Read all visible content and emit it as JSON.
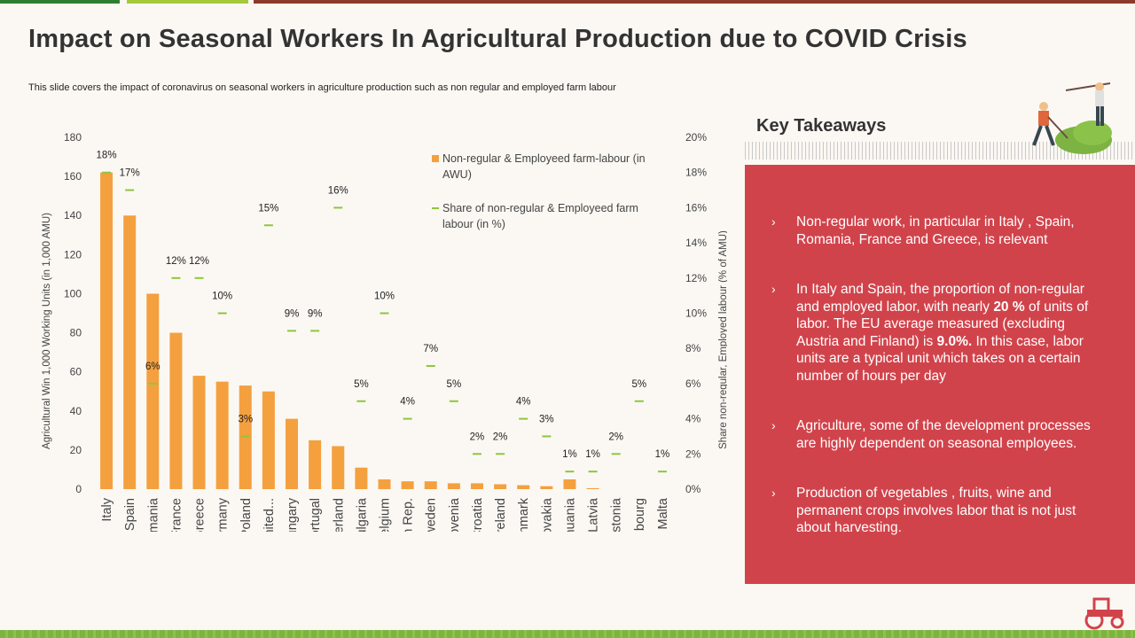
{
  "slide": {
    "title": "Impact on Seasonal Workers In Agricultural Production due to COVID Crisis",
    "subtitle": "This slide covers the  impact of coronavirus on seasonal workers in agriculture production such as non regular and employed farm labour"
  },
  "takeaways": {
    "title": "Key Takeaways",
    "items": [
      {
        "arrow": "›",
        "html": "Non-regular work, in particular in Italy , Spain, Romania, France and Greece, is relevant"
      },
      {
        "arrow": "›",
        "html": "In Italy and Spain, the proportion of non-regular and employed labor, with nearly <b>20 %</b> of units of labor. The EU average measured (excluding Austria and Finland) is <b>9.0%.</b> In this case, labor units are a typical unit which takes on a certain number of hours per day"
      },
      {
        "arrow": "›",
        "html": "Agriculture, some of the development processes are highly dependent on seasonal employees."
      },
      {
        "arrow": "›",
        "html": "Production of vegetables , fruits, wine and permanent crops involves labor that is not just about harvesting."
      }
    ]
  },
  "chart_data": {
    "type": "bar",
    "categories": [
      "Italy",
      "Spain",
      "Romania",
      "France",
      "Greece",
      "Germany",
      "Poland",
      "United...",
      "Hungary",
      "Portugal",
      "Netherland",
      "Bulgaria",
      "Belgium",
      "Czech Rep.",
      "Sweden",
      "Slovenia",
      "Croatia",
      "Ireland",
      "Denmark",
      "Slovakia",
      "Lithuania",
      "Latvia",
      "Estonia",
      "Luxembourg",
      "Malta"
    ],
    "series": [
      {
        "name": "Non-regular & Employeed farm-labour (in AWU)",
        "axis": "left",
        "kind": "bar",
        "values": [
          162,
          140,
          100,
          80,
          58,
          55,
          53,
          50,
          36,
          25,
          22,
          11,
          5,
          4,
          4,
          3,
          3,
          2.5,
          2,
          1.5,
          5,
          0.5,
          0,
          0,
          0
        ]
      },
      {
        "name": "Share of non-regular & Employeed farm labour (in %)",
        "axis": "right",
        "kind": "marker",
        "values": [
          18,
          17,
          6,
          12,
          12,
          10,
          3,
          15,
          9,
          9,
          16,
          5,
          10,
          4,
          7,
          5,
          2,
          2,
          4,
          3,
          1,
          1,
          2,
          5,
          1
        ],
        "labels": [
          "18%",
          "17%",
          "6%",
          "12%",
          "12%",
          "10%",
          "3%",
          "15%",
          "9%",
          "9%",
          "16%",
          "5%",
          "10%",
          "4%",
          "7%",
          "5%",
          "2%",
          "2%",
          "4%",
          "3%",
          "1%",
          "1%",
          "2%",
          "5%",
          "1%"
        ]
      }
    ],
    "ylabel": "Agricultural Win 1,000 Working Units (in 1,000 AMU)",
    "y2label": "Share non-regular, Employed labour (% of AMU)",
    "ylim": [
      0,
      180
    ],
    "yticks": [
      "0",
      "20",
      "40",
      "60",
      "80",
      "100",
      "120",
      "140",
      "160",
      "180"
    ],
    "y2lim": [
      0,
      20
    ],
    "y2ticks": [
      "0%",
      "2%",
      "4%",
      "6%",
      "8%",
      "10%",
      "12%",
      "14%",
      "16%",
      "18%",
      "20%"
    ],
    "legend_placement": "top-right",
    "grid": false,
    "colors": {
      "bar": "#f4a03f",
      "marker": "#8dc63f",
      "text": "#444444"
    }
  }
}
